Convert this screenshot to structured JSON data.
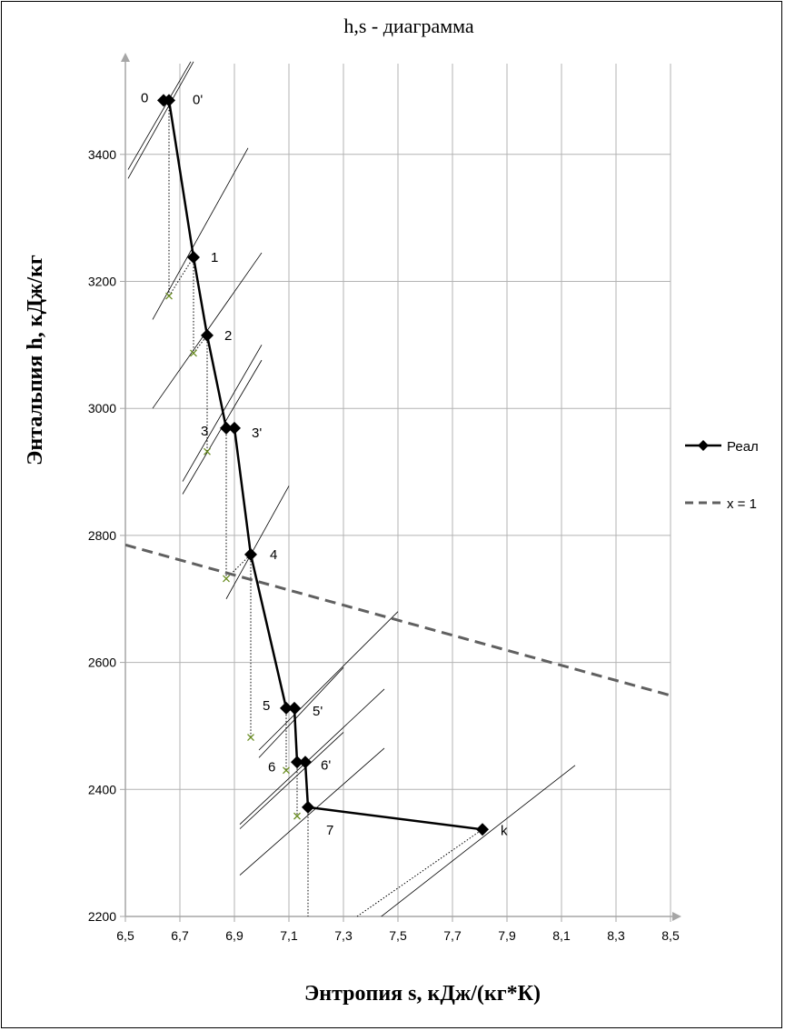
{
  "chart_data": {
    "type": "line",
    "title": "h,s - диаграмма",
    "xlabel": "Энтропия s, кДж/(кг*К)",
    "ylabel": "Энтальпия h, кДж/кг",
    "xlim": [
      6.5,
      8.5
    ],
    "ylim": [
      2200,
      3500
    ],
    "x_ticks": [
      "6,5",
      "6,7",
      "6,9",
      "7,1",
      "7,3",
      "7,5",
      "7,7",
      "7,9",
      "8,1",
      "8,3",
      "8,5"
    ],
    "y_ticks": [
      "2200",
      "2400",
      "2600",
      "2800",
      "3000",
      "3200",
      "3400"
    ],
    "grid": true,
    "legend_position": "right",
    "series": [
      {
        "name": "Реал",
        "style": "solid-diamond",
        "color": "#000000",
        "points": [
          {
            "x": 6.64,
            "y": 3485,
            "label": "0"
          },
          {
            "x": 6.66,
            "y": 3485,
            "label": "0'"
          },
          {
            "x": 6.75,
            "y": 3238,
            "label": "1"
          },
          {
            "x": 6.8,
            "y": 3115,
            "label": "2"
          },
          {
            "x": 6.87,
            "y": 2969,
            "label": "3"
          },
          {
            "x": 6.9,
            "y": 2969,
            "label": "3'"
          },
          {
            "x": 6.96,
            "y": 2770,
            "label": "4"
          },
          {
            "x": 7.09,
            "y": 2528,
            "label": "5"
          },
          {
            "x": 7.12,
            "y": 2528,
            "label": "5'"
          },
          {
            "x": 7.13,
            "y": 2443,
            "label": "6"
          },
          {
            "x": 7.16,
            "y": 2443,
            "label": "6'"
          },
          {
            "x": 7.17,
            "y": 2372,
            "label": "7"
          },
          {
            "x": 7.81,
            "y": 2337,
            "label": "k"
          }
        ]
      },
      {
        "name": "x = 1",
        "style": "dashed",
        "color": "#606060",
        "points": [
          {
            "x": 6.5,
            "y": 2785
          },
          {
            "x": 8.5,
            "y": 2548
          }
        ]
      }
    ],
    "ideal_points": [
      {
        "x": 6.66,
        "y": 3177
      },
      {
        "x": 6.75,
        "y": 3087
      },
      {
        "x": 6.8,
        "y": 2932
      },
      {
        "x": 6.87,
        "y": 2732
      },
      {
        "x": 6.96,
        "y": 2482
      },
      {
        "x": 7.09,
        "y": 2430
      },
      {
        "x": 7.13,
        "y": 2358
      }
    ],
    "isobars": [
      {
        "x0": 6.51,
        "y0": 3362,
        "x1": 6.75,
        "y1": 3546
      },
      {
        "x0": 6.51,
        "y0": 3376,
        "x1": 6.74,
        "y1": 3546
      },
      {
        "x0": 6.6,
        "y0": 3140,
        "x1": 6.95,
        "y1": 3410
      },
      {
        "x0": 6.6,
        "y0": 3000,
        "x1": 7.0,
        "y1": 3245
      },
      {
        "x0": 6.71,
        "y0": 2885,
        "x1": 7.0,
        "y1": 3100
      },
      {
        "x0": 6.71,
        "y0": 2865,
        "x1": 7.0,
        "y1": 3076
      },
      {
        "x0": 6.87,
        "y0": 2700,
        "x1": 7.1,
        "y1": 2878
      },
      {
        "x0": 6.99,
        "y0": 2462,
        "x1": 7.5,
        "y1": 2680
      },
      {
        "x0": 6.99,
        "y0": 2450,
        "x1": 7.3,
        "y1": 2592
      },
      {
        "x0": 6.92,
        "y0": 2345,
        "x1": 7.45,
        "y1": 2558
      },
      {
        "x0": 6.92,
        "y0": 2338,
        "x1": 7.3,
        "y1": 2490
      },
      {
        "x0": 6.92,
        "y0": 2265,
        "x1": 7.45,
        "y1": 2465
      },
      {
        "x0": 7.2,
        "y0": 2120,
        "x1": 8.15,
        "y1": 2438
      }
    ],
    "verticals": [
      {
        "x": 6.66,
        "y0": 3485,
        "y1": 3177
      },
      {
        "x": 6.75,
        "y0": 3238,
        "y1": 3087
      },
      {
        "x": 6.8,
        "y0": 3115,
        "y1": 2932
      },
      {
        "x": 6.87,
        "y0": 2969,
        "y1": 2732
      },
      {
        "x": 6.96,
        "y0": 2770,
        "y1": 2482
      },
      {
        "x": 7.09,
        "y0": 2528,
        "y1": 2430
      },
      {
        "x": 7.13,
        "y0": 2443,
        "y1": 2358
      },
      {
        "x": 7.17,
        "y0": 2372,
        "y1": 2200
      }
    ],
    "dotted_diagonals": [
      {
        "x0": 6.66,
        "y0": 3177,
        "x1": 6.75,
        "y1": 3238
      },
      {
        "x0": 6.75,
        "y0": 3087,
        "x1": 6.8,
        "y1": 3115
      },
      {
        "x0": 6.87,
        "y0": 2732,
        "x1": 6.96,
        "y1": 2770
      },
      {
        "x0": 7.35,
        "y0": 2200,
        "x1": 7.81,
        "y1": 2337
      }
    ]
  }
}
